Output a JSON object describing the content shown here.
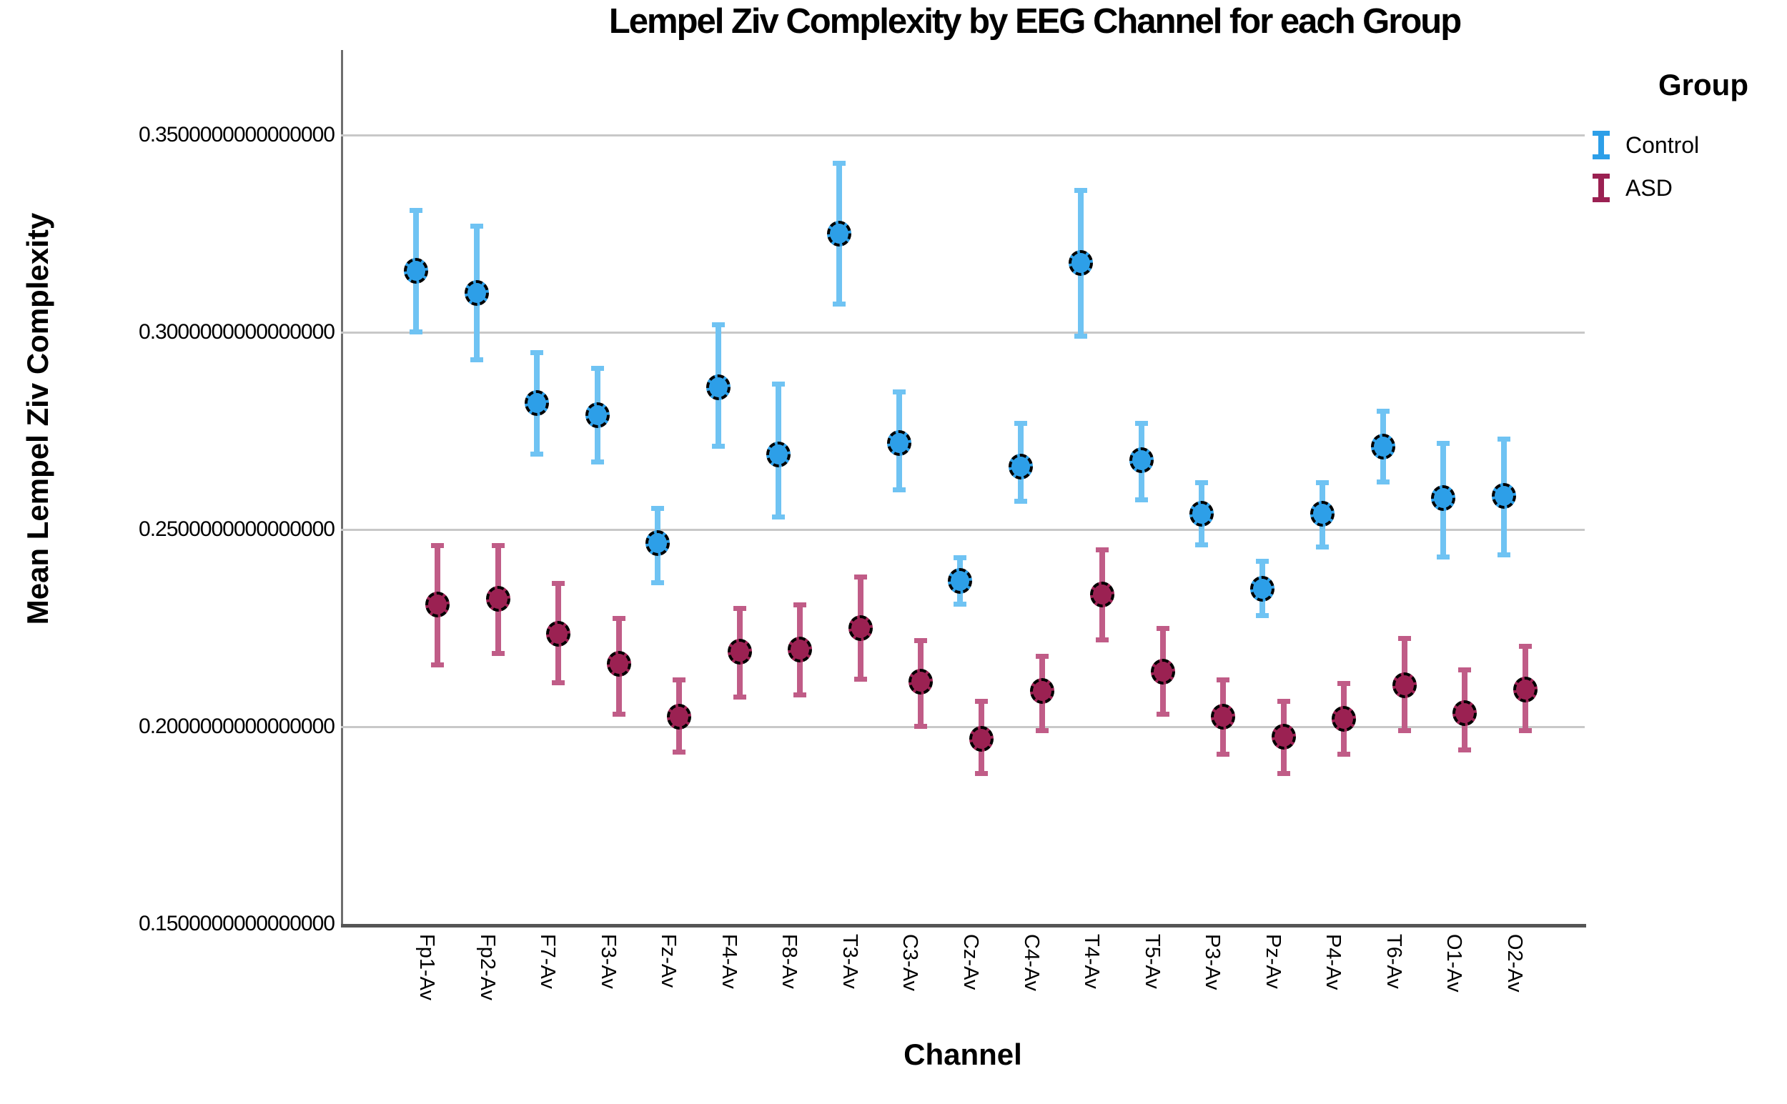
{
  "title": "Lempel Ziv Complexity by EEG Channel for each Group",
  "y_axis": {
    "label": "Mean Lempel Ziv Complexity",
    "ticks": [
      {
        "value": 0.35,
        "label": "0.3500000000000000"
      },
      {
        "value": 0.3,
        "label": "0.3000000000000000"
      },
      {
        "value": 0.25,
        "label": "0.2500000000000000"
      },
      {
        "value": 0.2,
        "label": "0.2000000000000000"
      },
      {
        "value": 0.15,
        "label": "0.1500000000000000"
      }
    ]
  },
  "x_axis": {
    "label": "Channel"
  },
  "legend": {
    "title": "Group",
    "items": [
      {
        "label": "Control"
      },
      {
        "label": "ASD"
      }
    ]
  },
  "chart_data": {
    "type": "scatter",
    "subtype": "mean-with-95ci-error-bars",
    "title": "Lempel Ziv Complexity by EEG Channel for each Group",
    "xlabel": "Channel",
    "ylabel": "Mean Lempel Ziv Complexity",
    "ylim": [
      0.15,
      0.372
    ],
    "grid": "horizontal",
    "legend_position": "top-right",
    "categories": [
      "Fp1-Av",
      "Fp2-Av",
      "F7-Av",
      "F3-Av",
      "Fz-Av",
      "F4-Av",
      "F8-Av",
      "T3-Av",
      "C3-Av",
      "Cz-Av",
      "C4-Av",
      "T4-Av",
      "T5-Av",
      "P3-Av",
      "Pz-Av",
      "P4-Av",
      "T6-Av",
      "O1-Av",
      "O2-Av"
    ],
    "series": [
      {
        "name": "Control",
        "dot_color": "#2d9fe8",
        "bar_color": "#6fc3f3",
        "means": [
          0.3155,
          0.31,
          0.282,
          0.279,
          0.2465,
          0.286,
          0.269,
          0.325,
          0.272,
          0.237,
          0.266,
          0.3175,
          0.2675,
          0.254,
          0.235,
          0.254,
          0.271,
          0.258,
          0.2585
        ],
        "ci_high": [
          0.331,
          0.327,
          0.295,
          0.291,
          0.2555,
          0.302,
          0.287,
          0.343,
          0.285,
          0.243,
          0.277,
          0.336,
          0.277,
          0.262,
          0.242,
          0.262,
          0.28,
          0.272,
          0.273
        ],
        "ci_low": [
          0.3,
          0.293,
          0.269,
          0.267,
          0.2365,
          0.271,
          0.253,
          0.307,
          0.26,
          0.231,
          0.257,
          0.299,
          0.2575,
          0.246,
          0.228,
          0.2455,
          0.262,
          0.243,
          0.2435
        ]
      },
      {
        "name": "ASD",
        "dot_color": "#9b2152",
        "bar_color": "#c05c87",
        "means": [
          0.231,
          0.2325,
          0.2235,
          0.216,
          0.2025,
          0.219,
          0.2195,
          0.225,
          0.2115,
          0.197,
          0.209,
          0.2335,
          0.214,
          0.2025,
          0.1975,
          0.202,
          0.2105,
          0.2035,
          0.2095
        ],
        "ci_high": [
          0.246,
          0.246,
          0.2365,
          0.2275,
          0.212,
          0.23,
          0.231,
          0.238,
          0.222,
          0.2065,
          0.218,
          0.245,
          0.225,
          0.212,
          0.2065,
          0.211,
          0.2225,
          0.2145,
          0.2205
        ],
        "ci_low": [
          0.2155,
          0.2185,
          0.211,
          0.203,
          0.1935,
          0.2075,
          0.208,
          0.212,
          0.2,
          0.188,
          0.199,
          0.222,
          0.203,
          0.193,
          0.188,
          0.193,
          0.199,
          0.194,
          0.199
        ]
      }
    ]
  }
}
